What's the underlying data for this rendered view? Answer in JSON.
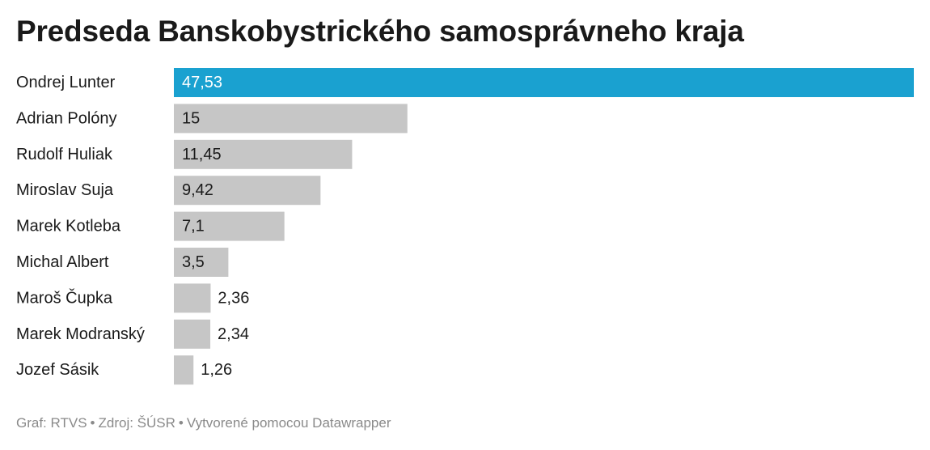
{
  "chart_data": {
    "type": "bar",
    "orientation": "horizontal",
    "title": "Predseda Banskobystrického samosprávneho kraja",
    "categories": [
      "Ondrej Lunter",
      "Adrian Polóny",
      "Rudolf Huliak",
      "Miroslav Suja",
      "Marek Kotleba",
      "Michal Albert",
      "Maroš Čupka",
      "Marek Modranský",
      "Jozef Sásik"
    ],
    "values": [
      47.53,
      15,
      11.45,
      9.42,
      7.1,
      3.5,
      2.36,
      2.34,
      1.26
    ],
    "value_labels": [
      "47,53",
      "15",
      "11,45",
      "9,42",
      "7,1",
      "3,5",
      "2,36",
      "2,34",
      "1,26"
    ],
    "xlim": [
      0,
      47.53
    ],
    "grid": false,
    "highlight_color": "#1aa1d0",
    "bar_color": "#c6c6c6"
  },
  "footer": {
    "graph": "Graf: RTVS",
    "source": "Zdroj: ŠÚSR",
    "made_with": "Vytvorené pomocou Datawrapper",
    "separator": "•"
  }
}
